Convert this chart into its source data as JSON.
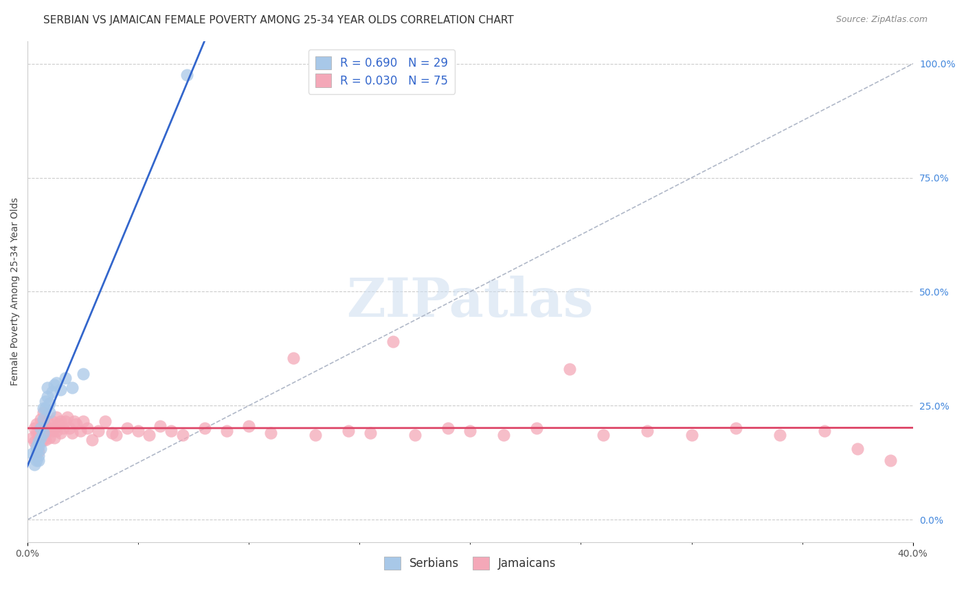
{
  "title": "SERBIAN VS JAMAICAN FEMALE POVERTY AMONG 25-34 YEAR OLDS CORRELATION CHART",
  "source": "Source: ZipAtlas.com",
  "ylabel": "Female Poverty Among 25-34 Year Olds",
  "xlim": [
    0.0,
    0.4
  ],
  "ylim": [
    -0.05,
    1.05
  ],
  "yticks_right": [
    0.0,
    0.25,
    0.5,
    0.75,
    1.0
  ],
  "ytick_labels_right": [
    "0.0%",
    "25.0%",
    "50.0%",
    "75.0%",
    "100.0%"
  ],
  "serbian_color": "#a8c8e8",
  "jamaican_color": "#f4a8b8",
  "serbian_line_color": "#3366cc",
  "jamaican_line_color": "#dd4466",
  "diagonal_color": "#b0b8c8",
  "watermark_text": "ZIPatlas",
  "legend_serbian_label": "R = 0.690   N = 29",
  "legend_jamaican_label": "R = 0.030   N = 75",
  "title_fontsize": 11,
  "axis_label_fontsize": 10,
  "tick_fontsize": 10,
  "legend_fontsize": 12,
  "serbian_x": [
    0.002,
    0.003,
    0.004,
    0.004,
    0.004,
    0.005,
    0.005,
    0.005,
    0.005,
    0.006,
    0.006,
    0.006,
    0.007,
    0.007,
    0.007,
    0.008,
    0.008,
    0.009,
    0.009,
    0.01,
    0.01,
    0.011,
    0.012,
    0.013,
    0.015,
    0.017,
    0.02,
    0.025,
    0.072
  ],
  "serbian_y": [
    0.145,
    0.12,
    0.15,
    0.13,
    0.16,
    0.14,
    0.16,
    0.13,
    0.17,
    0.18,
    0.155,
    0.2,
    0.22,
    0.245,
    0.19,
    0.245,
    0.26,
    0.27,
    0.29,
    0.235,
    0.255,
    0.28,
    0.295,
    0.3,
    0.285,
    0.31,
    0.29,
    0.32,
    0.975
  ],
  "jamaican_x": [
    0.002,
    0.003,
    0.003,
    0.004,
    0.004,
    0.004,
    0.005,
    0.005,
    0.005,
    0.006,
    0.006,
    0.006,
    0.007,
    0.007,
    0.007,
    0.007,
    0.008,
    0.008,
    0.009,
    0.009,
    0.01,
    0.01,
    0.011,
    0.011,
    0.012,
    0.012,
    0.013,
    0.013,
    0.014,
    0.015,
    0.015,
    0.016,
    0.017,
    0.018,
    0.019,
    0.02,
    0.021,
    0.022,
    0.024,
    0.025,
    0.027,
    0.029,
    0.032,
    0.035,
    0.038,
    0.04,
    0.045,
    0.05,
    0.055,
    0.06,
    0.065,
    0.07,
    0.08,
    0.09,
    0.1,
    0.11,
    0.12,
    0.13,
    0.145,
    0.155,
    0.165,
    0.175,
    0.19,
    0.2,
    0.215,
    0.23,
    0.245,
    0.26,
    0.28,
    0.3,
    0.32,
    0.34,
    0.36,
    0.375,
    0.39
  ],
  "jamaican_y": [
    0.18,
    0.17,
    0.2,
    0.16,
    0.19,
    0.21,
    0.18,
    0.15,
    0.19,
    0.17,
    0.2,
    0.22,
    0.175,
    0.195,
    0.215,
    0.235,
    0.2,
    0.175,
    0.195,
    0.215,
    0.18,
    0.2,
    0.195,
    0.215,
    0.18,
    0.2,
    0.195,
    0.225,
    0.21,
    0.19,
    0.215,
    0.2,
    0.215,
    0.225,
    0.2,
    0.19,
    0.215,
    0.21,
    0.195,
    0.215,
    0.2,
    0.175,
    0.195,
    0.215,
    0.19,
    0.185,
    0.2,
    0.195,
    0.185,
    0.205,
    0.195,
    0.185,
    0.2,
    0.195,
    0.205,
    0.19,
    0.355,
    0.185,
    0.195,
    0.19,
    0.39,
    0.185,
    0.2,
    0.195,
    0.185,
    0.2,
    0.33,
    0.185,
    0.195,
    0.185,
    0.2,
    0.185,
    0.195,
    0.155,
    0.13
  ]
}
